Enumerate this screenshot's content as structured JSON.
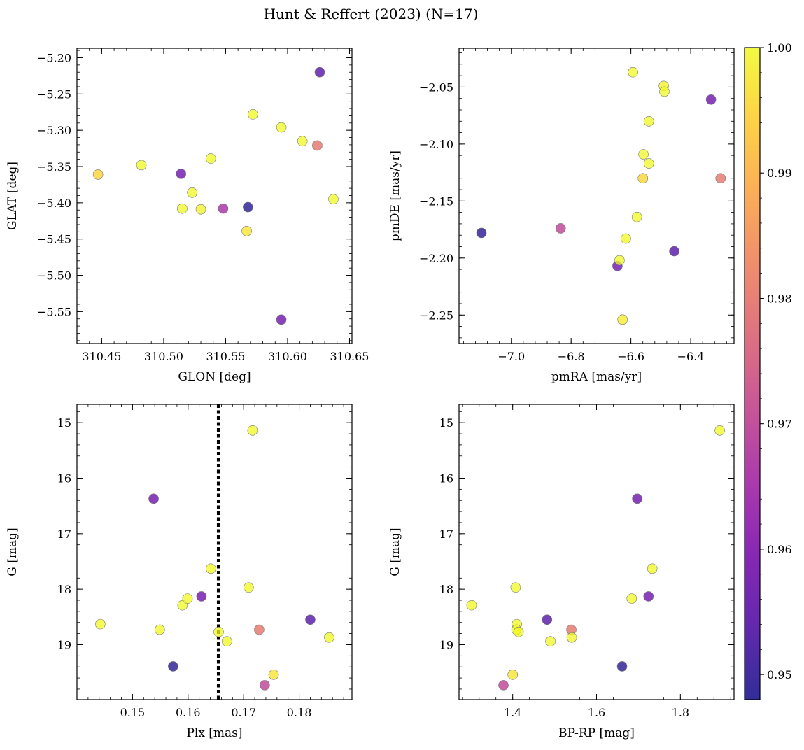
{
  "suptitle": "Hunt & Reffert (2023) (N=17)",
  "colormap": {
    "name": "plasma",
    "range": [
      0.948,
      1.0
    ],
    "stops": [
      "#0d0887",
      "#46039f",
      "#7201a8",
      "#9c179e",
      "#bd3786",
      "#d8576b",
      "#ed7953",
      "#fb9f3a",
      "#fdca26",
      "#f0f921"
    ],
    "ticks": [
      "0.95",
      "0.96",
      "0.97",
      "0.98",
      "0.99",
      "1.00"
    ],
    "tick_values": [
      0.95,
      0.96,
      0.97,
      0.98,
      0.99,
      1.0
    ],
    "alpha": 0.75
  },
  "chart_data": [
    {
      "type": "scatter",
      "id": "glon_glat",
      "xlabel": "GLON [deg]",
      "ylabel": "GLAT [deg]",
      "xlim": [
        310.43,
        310.652
      ],
      "ylim": [
        -5.594,
        -5.187
      ],
      "xticks": [
        "310.45",
        "310.50",
        "310.55",
        "310.60",
        "310.65"
      ],
      "xtick_values": [
        310.45,
        310.5,
        310.55,
        310.6,
        310.65
      ],
      "yticks": [
        "−5.20",
        "−5.25",
        "−5.30",
        "−5.35",
        "−5.40",
        "−5.45",
        "−5.50",
        "−5.55"
      ],
      "ytick_values": [
        -5.2,
        -5.25,
        -5.3,
        -5.35,
        -5.4,
        -5.45,
        -5.5,
        -5.55
      ],
      "points": [
        {
          "x": 310.447,
          "y": -5.361,
          "c": 0.995
        },
        {
          "x": 310.482,
          "y": -5.348,
          "c": 1.0
        },
        {
          "x": 310.514,
          "y": -5.36,
          "c": 0.958
        },
        {
          "x": 310.515,
          "y": -5.408,
          "c": 1.0
        },
        {
          "x": 310.523,
          "y": -5.386,
          "c": 1.0
        },
        {
          "x": 310.53,
          "y": -5.409,
          "c": 0.999
        },
        {
          "x": 310.538,
          "y": -5.339,
          "c": 1.0
        },
        {
          "x": 310.548,
          "y": -5.408,
          "c": 0.966
        },
        {
          "x": 310.568,
          "y": -5.406,
          "c": 0.949
        },
        {
          "x": 310.567,
          "y": -5.439,
          "c": 0.997
        },
        {
          "x": 310.572,
          "y": -5.278,
          "c": 1.0
        },
        {
          "x": 310.595,
          "y": -5.296,
          "c": 1.0
        },
        {
          "x": 310.595,
          "y": -5.561,
          "c": 0.958
        },
        {
          "x": 310.612,
          "y": -5.315,
          "c": 1.0
        },
        {
          "x": 310.624,
          "y": -5.321,
          "c": 0.98
        },
        {
          "x": 310.626,
          "y": -5.22,
          "c": 0.954
        },
        {
          "x": 310.637,
          "y": -5.395,
          "c": 1.0
        }
      ]
    },
    {
      "type": "scatter",
      "id": "pmra_pmde",
      "xlabel": "pmRA [mas/yr]",
      "ylabel": "pmDE [mas/yr]",
      "xlim": [
        -7.175,
        -6.255
      ],
      "ylim": [
        -2.275,
        -2.016
      ],
      "xticks": [
        "−7.0",
        "−6.8",
        "−6.6",
        "−6.4"
      ],
      "xtick_values": [
        -7.0,
        -6.8,
        -6.6,
        -6.4
      ],
      "yticks": [
        "−2.05",
        "−2.10",
        "−2.15",
        "−2.20",
        "−2.25"
      ],
      "ytick_values": [
        -2.05,
        -2.1,
        -2.15,
        -2.2,
        -2.25
      ],
      "points": [
        {
          "x": -7.1,
          "y": -2.178,
          "c": 0.949
        },
        {
          "x": -6.835,
          "y": -2.174,
          "c": 0.97
        },
        {
          "x": -6.645,
          "y": -2.207,
          "c": 0.958
        },
        {
          "x": -6.638,
          "y": -2.202,
          "c": 1.0
        },
        {
          "x": -6.628,
          "y": -2.254,
          "c": 0.998
        },
        {
          "x": -6.617,
          "y": -2.183,
          "c": 1.0
        },
        {
          "x": -6.593,
          "y": -2.037,
          "c": 1.0
        },
        {
          "x": -6.58,
          "y": -2.164,
          "c": 1.0
        },
        {
          "x": -6.56,
          "y": -2.13,
          "c": 0.995
        },
        {
          "x": -6.558,
          "y": -2.109,
          "c": 1.0
        },
        {
          "x": -6.54,
          "y": -2.117,
          "c": 1.0
        },
        {
          "x": -6.54,
          "y": -2.08,
          "c": 1.0
        },
        {
          "x": -6.49,
          "y": -2.049,
          "c": 0.999
        },
        {
          "x": -6.488,
          "y": -2.054,
          "c": 1.0
        },
        {
          "x": -6.455,
          "y": -2.194,
          "c": 0.954
        },
        {
          "x": -6.332,
          "y": -2.061,
          "c": 0.958
        },
        {
          "x": -6.3,
          "y": -2.13,
          "c": 0.98
        }
      ]
    },
    {
      "type": "scatter",
      "id": "plx_g",
      "xlabel": "Plx [mas]",
      "ylabel": "G [mag]",
      "xlim": [
        0.14,
        0.1895
      ],
      "ylim": [
        19.99,
        14.67
      ],
      "xticks": [
        "0.15",
        "0.16",
        "0.17",
        "0.18"
      ],
      "xtick_values": [
        0.15,
        0.16,
        0.17,
        0.18
      ],
      "yticks": [
        "15",
        "16",
        "17",
        "18",
        "19"
      ],
      "ytick_values": [
        15,
        16,
        17,
        18,
        19
      ],
      "vline": 0.1655,
      "points": [
        {
          "x": 0.1442,
          "y": 18.63,
          "c": 1.0
        },
        {
          "x": 0.1538,
          "y": 16.37,
          "c": 0.958
        },
        {
          "x": 0.1549,
          "y": 18.73,
          "c": 1.0
        },
        {
          "x": 0.1573,
          "y": 19.39,
          "c": 0.949
        },
        {
          "x": 0.159,
          "y": 18.29,
          "c": 1.0
        },
        {
          "x": 0.1599,
          "y": 18.17,
          "c": 1.0
        },
        {
          "x": 0.1624,
          "y": 18.13,
          "c": 0.958
        },
        {
          "x": 0.1641,
          "y": 17.63,
          "c": 1.0
        },
        {
          "x": 0.1655,
          "y": 18.77,
          "c": 1.0
        },
        {
          "x": 0.167,
          "y": 18.94,
          "c": 1.0
        },
        {
          "x": 0.1709,
          "y": 17.97,
          "c": 1.0
        },
        {
          "x": 0.1716,
          "y": 15.14,
          "c": 1.0
        },
        {
          "x": 0.1728,
          "y": 18.73,
          "c": 0.98
        },
        {
          "x": 0.1738,
          "y": 19.73,
          "c": 0.97
        },
        {
          "x": 0.1754,
          "y": 19.54,
          "c": 0.997
        },
        {
          "x": 0.182,
          "y": 18.55,
          "c": 0.954
        },
        {
          "x": 0.1854,
          "y": 18.87,
          "c": 1.0
        }
      ]
    },
    {
      "type": "scatter",
      "id": "bprp_g",
      "xlabel": "BP-RP [mag]",
      "ylabel": "G [mag]",
      "xlim": [
        1.272,
        1.928
      ],
      "ylim": [
        19.99,
        14.67
      ],
      "xticks": [
        "1.4",
        "1.6",
        "1.8"
      ],
      "xtick_values": [
        1.4,
        1.6,
        1.8
      ],
      "yticks": [
        "15",
        "16",
        "17",
        "18",
        "19"
      ],
      "ytick_values": [
        15,
        16,
        17,
        18,
        19
      ],
      "points": [
        {
          "x": 1.302,
          "y": 18.29,
          "c": 1.0
        },
        {
          "x": 1.378,
          "y": 19.73,
          "c": 0.97
        },
        {
          "x": 1.4,
          "y": 19.54,
          "c": 0.997
        },
        {
          "x": 1.407,
          "y": 17.97,
          "c": 1.0
        },
        {
          "x": 1.41,
          "y": 18.63,
          "c": 1.0
        },
        {
          "x": 1.409,
          "y": 18.73,
          "c": 1.0
        },
        {
          "x": 1.414,
          "y": 18.77,
          "c": 1.0
        },
        {
          "x": 1.482,
          "y": 18.55,
          "c": 0.954
        },
        {
          "x": 1.49,
          "y": 18.94,
          "c": 1.0
        },
        {
          "x": 1.54,
          "y": 18.73,
          "c": 0.98
        },
        {
          "x": 1.541,
          "y": 18.87,
          "c": 1.0
        },
        {
          "x": 1.661,
          "y": 19.39,
          "c": 0.949
        },
        {
          "x": 1.684,
          "y": 18.17,
          "c": 1.0
        },
        {
          "x": 1.697,
          "y": 16.37,
          "c": 0.958
        },
        {
          "x": 1.724,
          "y": 18.13,
          "c": 0.958
        },
        {
          "x": 1.733,
          "y": 17.63,
          "c": 1.0
        },
        {
          "x": 1.894,
          "y": 15.14,
          "c": 1.0
        }
      ]
    }
  ]
}
